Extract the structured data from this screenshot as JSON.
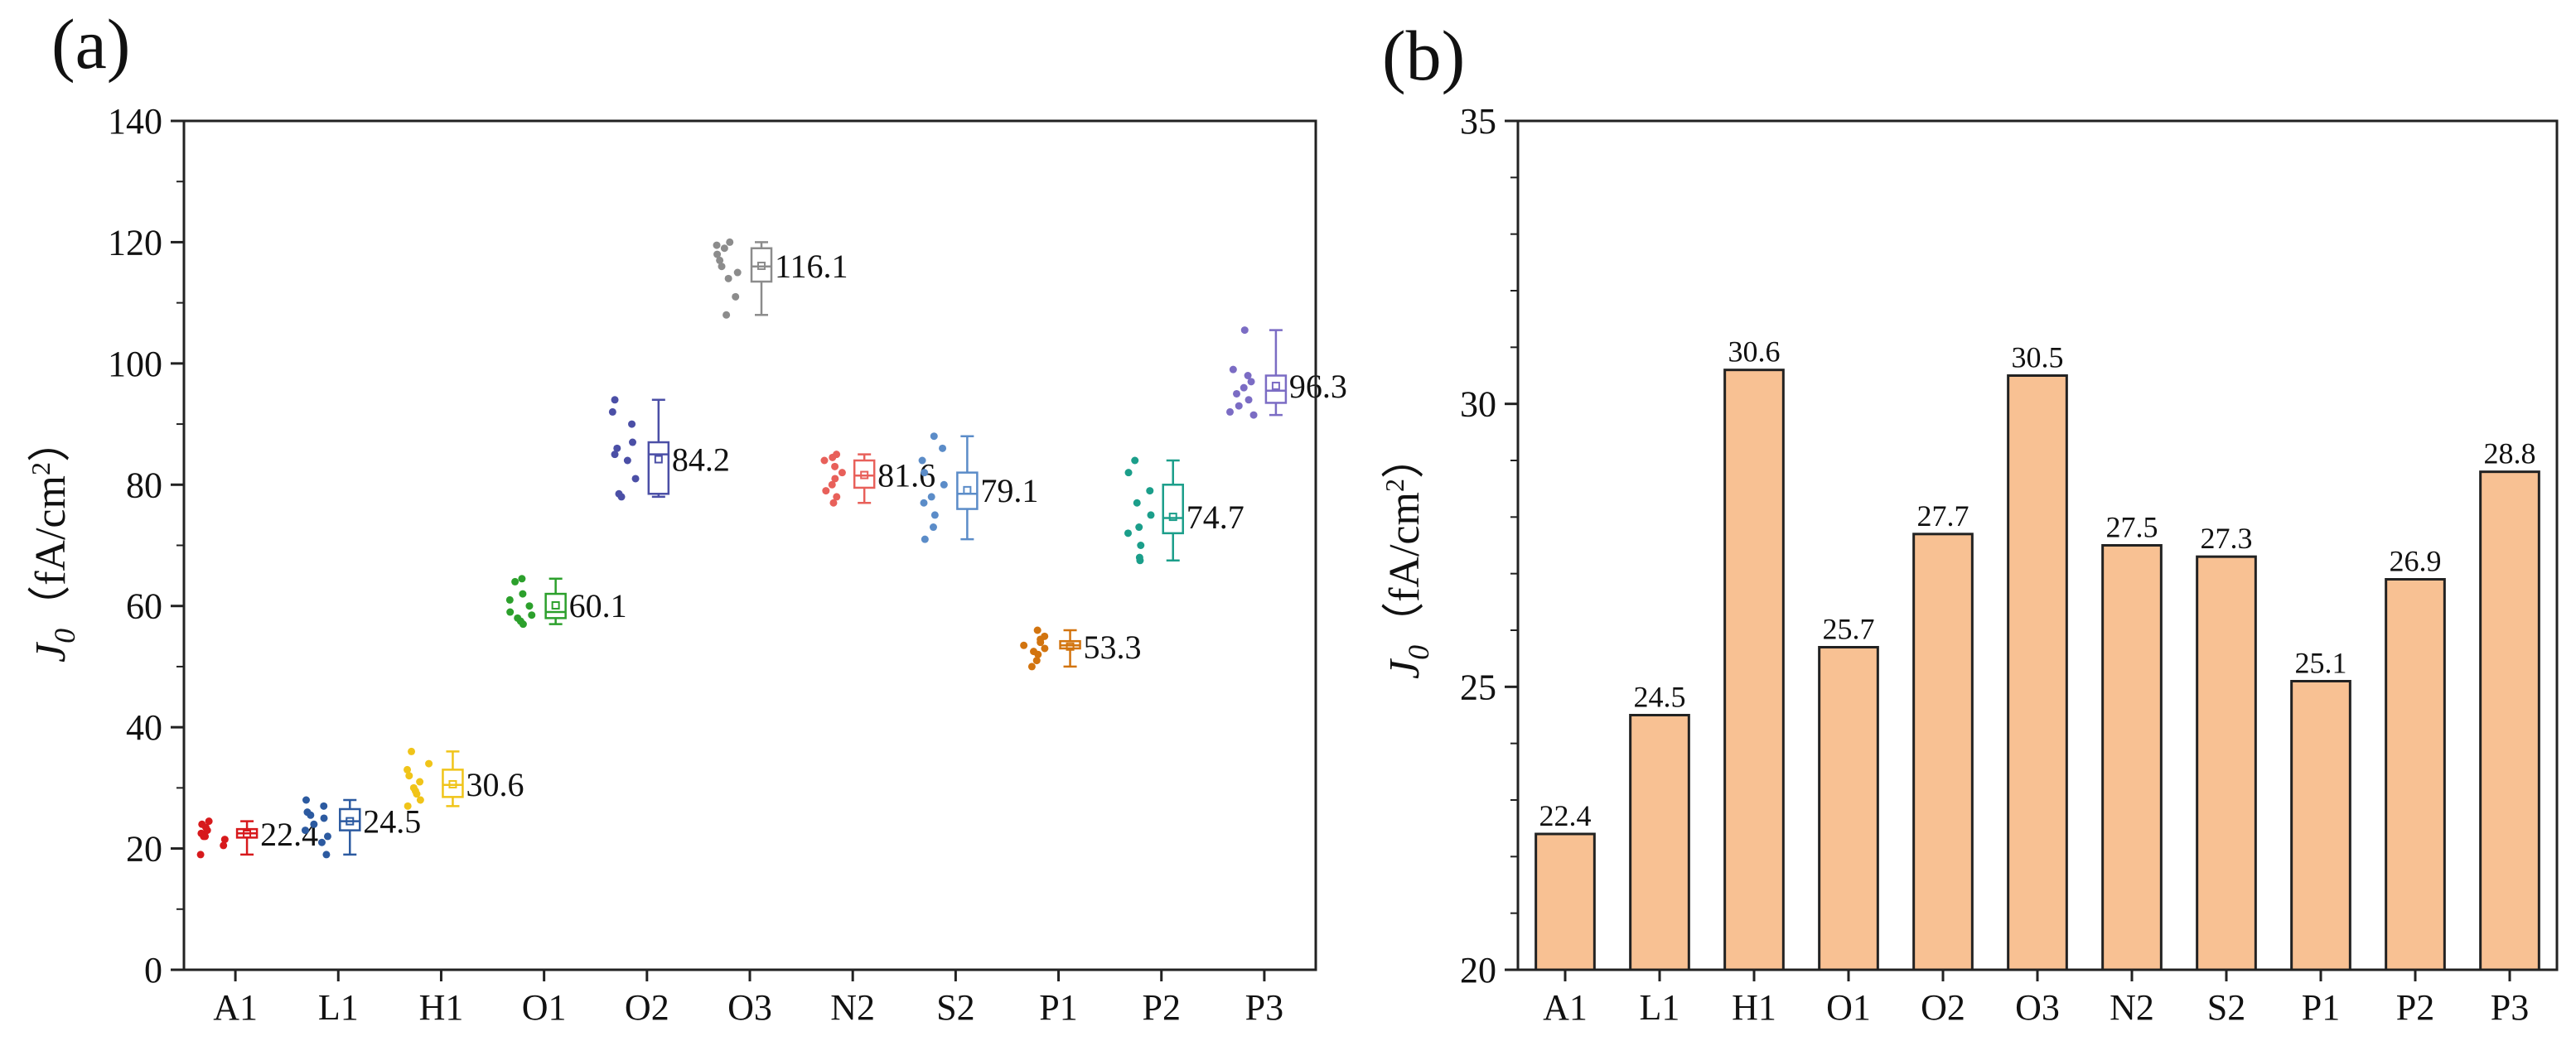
{
  "colors": {
    "A1": "#d7191c",
    "L1": "#2c5aa0",
    "H1": "#f0c419",
    "O1": "#2ca02c",
    "O2": "#4b4fa6",
    "O3": "#8c8c8c",
    "N2": "#e8605a",
    "S2": "#5b8cc8",
    "P1": "#d2740f",
    "P2": "#1b9e8a",
    "P3": "#7b6cc4",
    "bar_fill": "#f8c193",
    "bar_edge": "#222222"
  },
  "panel_a": {
    "panel_label": "(a)",
    "ylabel_main": "J",
    "ylabel_sub": "0",
    "ylabel_unit": "（fA/cm",
    "ylabel_sup": "2",
    "ylabel_close": "）"
  },
  "panel_b": {
    "panel_label": "(b)",
    "ylabel_main": "J",
    "ylabel_sub": "0",
    "ylabel_unit": "（fA/cm",
    "ylabel_sup": "2",
    "ylabel_close": "）"
  },
  "chart_data": [
    {
      "type": "box",
      "panel": "(a)",
      "categories": [
        "A1",
        "L1",
        "H1",
        "O1",
        "O2",
        "O3",
        "N2",
        "S2",
        "P1",
        "P2",
        "P3"
      ],
      "ylim": [
        0,
        140
      ],
      "yticks": [
        0,
        20,
        40,
        60,
        80,
        100,
        120,
        140
      ],
      "ylabel": "J0（fA/cm2）",
      "series": [
        {
          "name": "A1",
          "mean": 22.4,
          "label": "22.4",
          "min": 19,
          "q1": 21.8,
          "median": 22.5,
          "q3": 23.2,
          "max": 24.5,
          "points": [
            19,
            22,
            22.5,
            23,
            23.5,
            24,
            21.5,
            22,
            24.5,
            20.5
          ]
        },
        {
          "name": "L1",
          "mean": 24.5,
          "label": "24.5",
          "min": 19,
          "q1": 23,
          "median": 24.5,
          "q3": 26.5,
          "max": 28,
          "points": [
            19,
            21,
            23,
            24,
            25,
            26,
            27,
            28,
            22,
            25.5
          ]
        },
        {
          "name": "H1",
          "mean": 30.6,
          "label": "30.6",
          "min": 27,
          "q1": 28.5,
          "median": 30.5,
          "q3": 33,
          "max": 36,
          "points": [
            27,
            28,
            29.5,
            30,
            31,
            32,
            33,
            34,
            36,
            29
          ]
        },
        {
          "name": "O1",
          "mean": 60.1,
          "label": "60.1",
          "min": 57,
          "q1": 58,
          "median": 59,
          "q3": 62,
          "max": 64.5,
          "points": [
            57,
            57.5,
            58,
            58.5,
            59,
            60,
            61,
            62,
            64,
            64.5
          ]
        },
        {
          "name": "O2",
          "mean": 84.2,
          "label": "84.2",
          "min": 78,
          "q1": 78.5,
          "median": 85,
          "q3": 87,
          "max": 94,
          "points": [
            78,
            78.5,
            81,
            84,
            85,
            86,
            87,
            90,
            92,
            94
          ]
        },
        {
          "name": "O3",
          "mean": 116.1,
          "label": "116.1",
          "min": 108,
          "q1": 113.5,
          "median": 116,
          "q3": 119,
          "max": 120,
          "points": [
            108,
            111,
            114,
            115,
            116,
            117,
            118,
            119,
            119.5,
            120
          ]
        },
        {
          "name": "N2",
          "mean": 81.6,
          "label": "81.6",
          "min": 77,
          "q1": 79.5,
          "median": 81.5,
          "q3": 84,
          "max": 85,
          "points": [
            77,
            78,
            80,
            81,
            82,
            83,
            84,
            85,
            84.5,
            79
          ]
        },
        {
          "name": "S2",
          "mean": 79.1,
          "label": "79.1",
          "min": 71,
          "q1": 76,
          "median": 78.5,
          "q3": 82,
          "max": 88,
          "points": [
            71,
            73,
            75,
            77,
            78,
            80,
            82,
            84,
            86,
            88
          ]
        },
        {
          "name": "P1",
          "mean": 53.3,
          "label": "53.3",
          "min": 50,
          "q1": 53,
          "median": 53.5,
          "q3": 54.2,
          "max": 56,
          "points": [
            50,
            51,
            52,
            53,
            53.5,
            54,
            54.5,
            55,
            56,
            52.5
          ]
        },
        {
          "name": "P2",
          "mean": 74.7,
          "label": "74.7",
          "min": 67.5,
          "q1": 72,
          "median": 74.5,
          "q3": 80,
          "max": 84,
          "points": [
            67.5,
            68,
            70,
            72,
            73,
            75,
            77,
            79,
            82,
            84
          ]
        },
        {
          "name": "P3",
          "mean": 96.3,
          "label": "96.3",
          "min": 91.5,
          "q1": 93.5,
          "median": 95.5,
          "q3": 98,
          "max": 105.5,
          "points": [
            91.5,
            92,
            93,
            95,
            96,
            97,
            98,
            99,
            105.5,
            94
          ]
        }
      ]
    },
    {
      "type": "bar",
      "panel": "(b)",
      "categories": [
        "A1",
        "L1",
        "H1",
        "O1",
        "O2",
        "O3",
        "N2",
        "S2",
        "P1",
        "P2",
        "P3"
      ],
      "values": [
        22.4,
        24.5,
        30.6,
        25.7,
        27.7,
        30.5,
        27.5,
        27.3,
        25.1,
        26.9,
        28.8
      ],
      "value_labels": [
        "22.4",
        "24.5",
        "30.6",
        "25.7",
        "27.7",
        "30.5",
        "27.5",
        "27.3",
        "25.1",
        "26.9",
        "28.8"
      ],
      "ylim": [
        20,
        35
      ],
      "yticks": [
        20,
        25,
        30,
        35
      ],
      "ylabel": "J0（fA/cm2）"
    }
  ]
}
